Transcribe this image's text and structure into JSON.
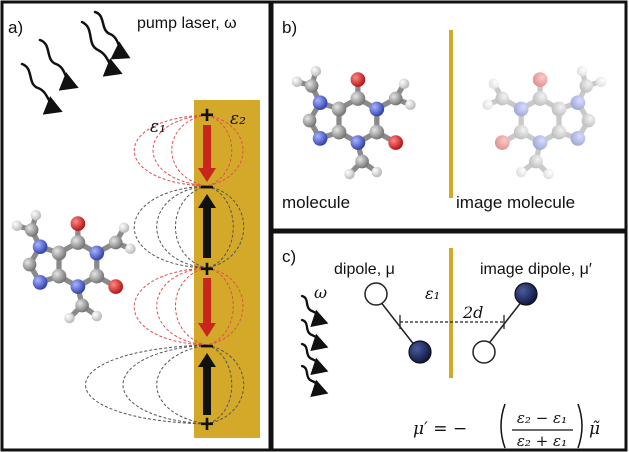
{
  "panels": {
    "a": {
      "tag": "a)",
      "pump_label": "pump laser, ω",
      "eps1": "ε₁",
      "eps2": "ε₂",
      "charges": [
        "+",
        "−",
        "+",
        "−",
        "+"
      ]
    },
    "b": {
      "tag": "b)",
      "molecule_label": "molecule",
      "image_molecule_label": "image molecule"
    },
    "c": {
      "tag": "c)",
      "dipole_label": "dipole, μ",
      "image_dipole_label": "image dipole, μ′",
      "omega": "ω",
      "eps1": "ε₁",
      "distance": "2d",
      "eq_lhs": "μ′ = −",
      "eq_num": "ε₂ − ε₁",
      "eq_den": "ε₂ + ε₁",
      "eq_rhs": "μ̃"
    }
  },
  "colors": {
    "gold": "#d4a92a",
    "red_arrow": "#c8261c",
    "dipole_dark": "#1a2558",
    "field_red": "#e05050",
    "field_gray": "#555555"
  }
}
